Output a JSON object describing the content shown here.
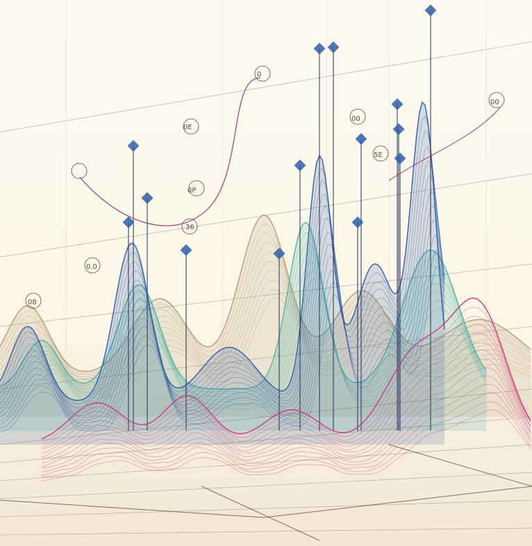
{
  "labels": [
    "0E",
    "0.0",
    "36",
    "5E",
    "00",
    "08",
    "0P",
    "0",
    "00"
  ],
  "colors": {
    "background": "#fbf8ec",
    "blue": "#2f5ea8",
    "teal": "#4fb3a9",
    "tan": "#b89a74",
    "magenta": "#d0397e",
    "grid": "#8a8a8a"
  }
}
